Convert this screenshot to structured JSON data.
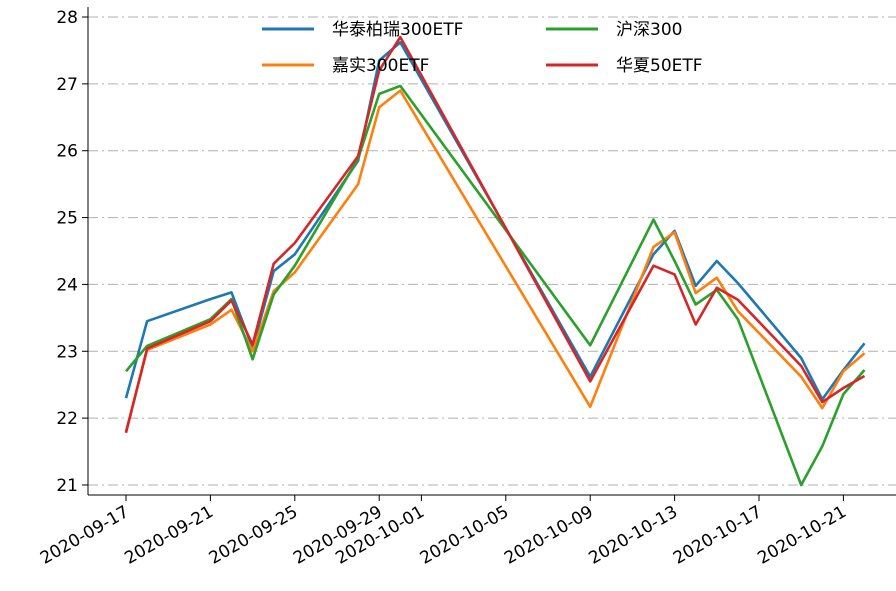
{
  "chart_data": {
    "type": "line",
    "title": "",
    "xlabel": "",
    "ylabel": "",
    "ylim": [
      20.85,
      28.15
    ],
    "xlim": [
      "2020-09-17",
      "2020-10-22"
    ],
    "y_ticks": [
      21,
      22,
      23,
      24,
      25,
      26,
      27,
      28
    ],
    "x_ticks": [
      "2020-09-17",
      "2020-09-21",
      "2020-09-25",
      "2020-09-29",
      "2020-10-01",
      "2020-10-05",
      "2020-10-09",
      "2020-10-13",
      "2020-10-17",
      "2020-10-21"
    ],
    "grid": "horizontal dash-dot",
    "legend_placement": "top-center",
    "x": [
      "2020-09-17",
      "2020-09-18",
      "2020-09-21",
      "2020-09-22",
      "2020-09-23",
      "2020-09-24",
      "2020-09-25",
      "2020-09-28",
      "2020-09-29",
      "2020-09-30",
      "2020-10-09",
      "2020-10-12",
      "2020-10-13",
      "2020-10-14",
      "2020-10-15",
      "2020-10-16",
      "2020-10-19",
      "2020-10-20",
      "2020-10-21",
      "2020-10-22"
    ],
    "series": [
      {
        "name": "华泰柏瑞300ETF",
        "color": "#1f77b4",
        "values": [
          22.3,
          23.45,
          23.78,
          23.88,
          23.05,
          24.2,
          24.45,
          25.85,
          27.35,
          27.62,
          22.62,
          24.45,
          24.8,
          23.98,
          24.35,
          24.02,
          22.9,
          22.28,
          22.72,
          23.12
        ]
      },
      {
        "name": "嘉实300ETF",
        "color": "#ff7f0e",
        "values": [
          21.8,
          23.02,
          23.4,
          23.62,
          23.0,
          23.9,
          24.18,
          25.5,
          26.65,
          26.9,
          22.17,
          24.56,
          24.78,
          23.87,
          24.1,
          23.6,
          22.62,
          22.15,
          22.7,
          22.97
        ]
      },
      {
        "name": "沪深300",
        "color": "#2ca02c",
        "values": [
          22.7,
          23.08,
          23.48,
          23.78,
          22.88,
          23.85,
          24.28,
          25.88,
          26.85,
          26.97,
          23.09,
          24.97,
          24.35,
          23.7,
          23.92,
          23.48,
          21.0,
          21.58,
          22.36,
          22.72
        ]
      },
      {
        "name": "华夏50ETF",
        "color": "#d62728",
        "values": [
          21.78,
          23.04,
          23.45,
          23.76,
          23.1,
          24.31,
          24.62,
          25.92,
          27.2,
          27.7,
          22.55,
          24.28,
          24.15,
          23.4,
          23.95,
          23.77,
          22.78,
          22.24,
          22.45,
          22.63
        ]
      }
    ]
  }
}
